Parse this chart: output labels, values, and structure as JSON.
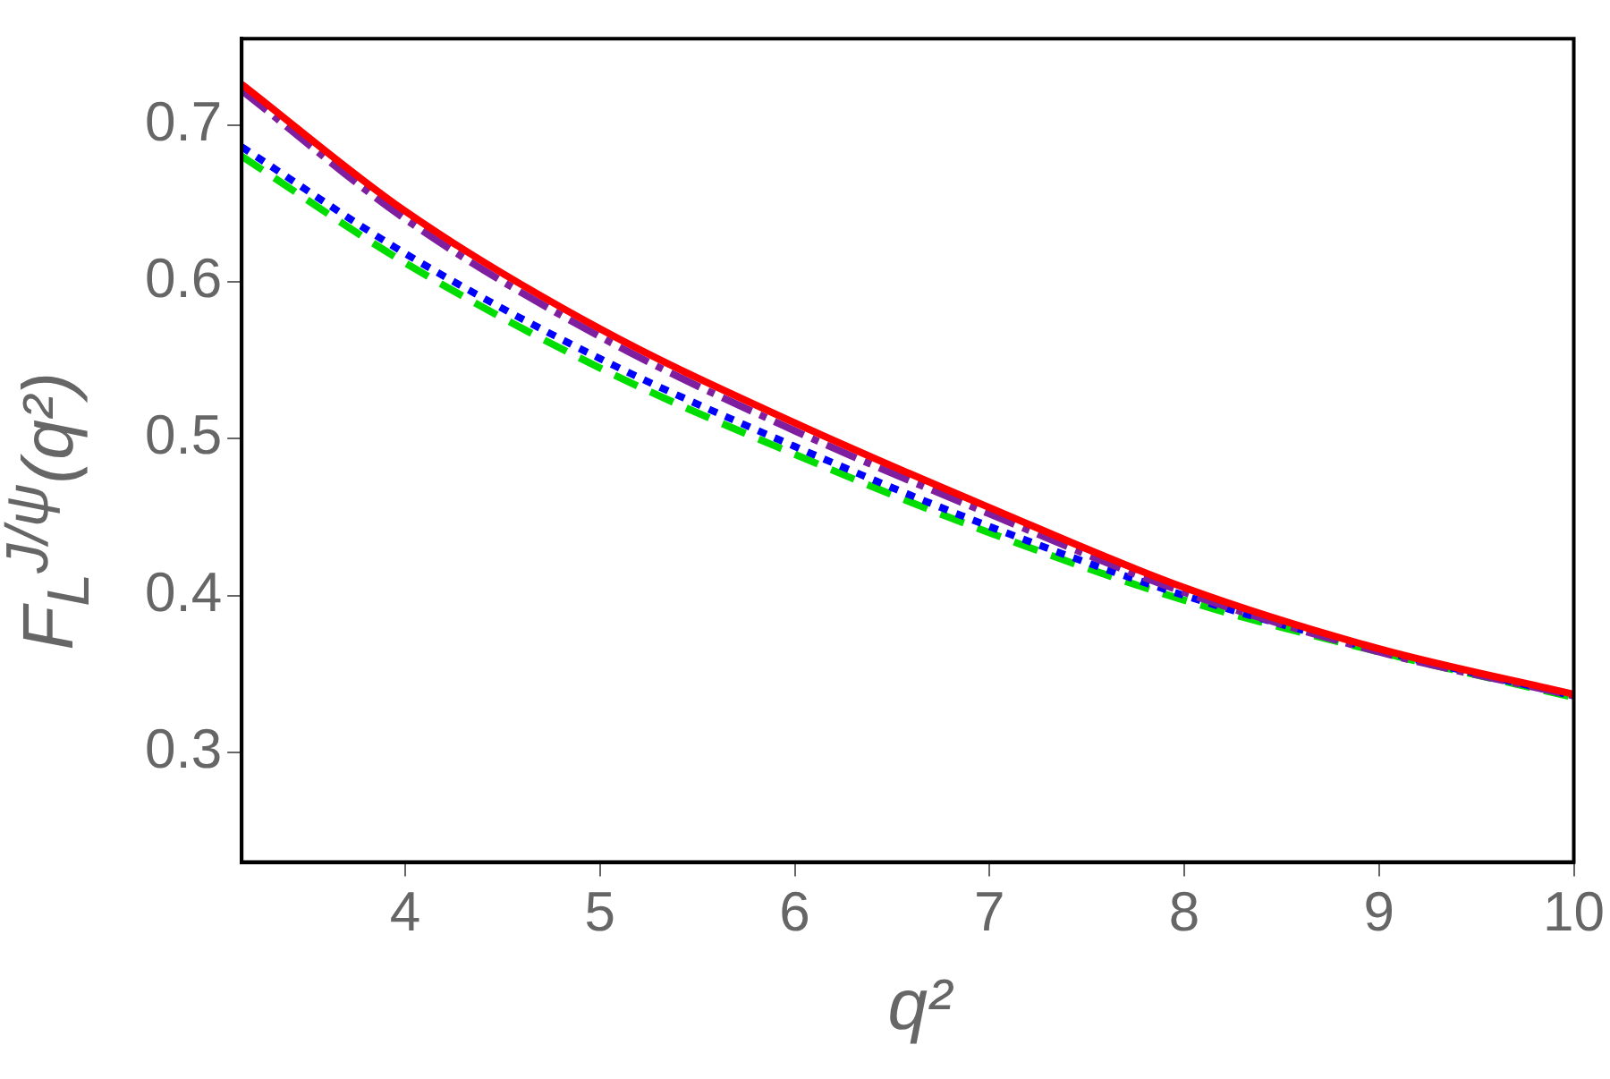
{
  "chart_data": {
    "type": "line",
    "xlabel": "q²",
    "ylabel": "F$_{L}$$^{J/ψ}$(q²)",
    "xlim": [
      3.16,
      10.0
    ],
    "xticks": [
      4,
      5,
      6,
      7,
      8,
      9,
      10
    ],
    "ylim": [
      0.23,
      0.755
    ],
    "yticks": [
      0.3,
      0.4,
      0.5,
      0.6,
      0.7
    ],
    "grid": false,
    "legend": false,
    "marker": "none",
    "series": [
      {
        "color": "#ff0000",
        "line_style": "solid",
        "x": [
          3.16,
          4,
          5,
          6,
          7,
          8,
          9,
          10
        ],
        "values": [
          0.726,
          0.645,
          0.57,
          0.51,
          0.456,
          0.405,
          0.366,
          0.337
        ]
      },
      {
        "color": "#7f1f9f",
        "line_style": "dashdot",
        "x": [
          3.16,
          4,
          5,
          6,
          7,
          8,
          9,
          10
        ],
        "values": [
          0.722,
          0.64,
          0.565,
          0.505,
          0.452,
          0.402,
          0.364,
          0.336
        ]
      },
      {
        "color": "#0000ff",
        "line_style": "dotted",
        "x": [
          3.16,
          4,
          5,
          6,
          7,
          8,
          9,
          10
        ],
        "values": [
          0.686,
          0.618,
          0.551,
          0.495,
          0.444,
          0.4,
          0.365,
          0.336
        ]
      },
      {
        "color": "#00dd00",
        "line_style": "dashed",
        "x": [
          3.16,
          4,
          5,
          6,
          7,
          8,
          9,
          10
        ],
        "values": [
          0.68,
          0.612,
          0.545,
          0.49,
          0.44,
          0.397,
          0.364,
          0.335
        ]
      }
    ]
  }
}
